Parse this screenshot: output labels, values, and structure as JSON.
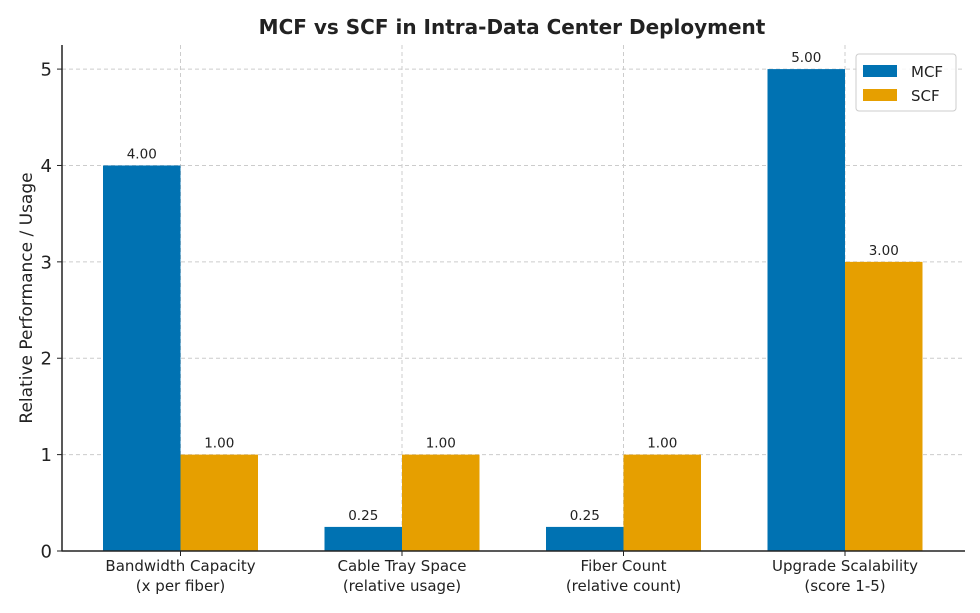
{
  "chart_data": {
    "type": "bar",
    "title": "MCF vs SCF in Intra-Data Center Deployment",
    "xlabel": "",
    "ylabel": "Relative Performance / Usage",
    "categories": [
      [
        "Bandwidth Capacity",
        "(x per fiber)"
      ],
      [
        "Cable Tray Space",
        "(relative usage)"
      ],
      [
        "Fiber Count",
        "(relative count)"
      ],
      [
        "Upgrade Scalability",
        "(score 1-5)"
      ]
    ],
    "series": [
      {
        "name": "MCF",
        "color": "#0072b2",
        "values": [
          4.0,
          0.25,
          0.25,
          5.0
        ],
        "labels": [
          "4.00",
          "0.25",
          "0.25",
          "5.00"
        ]
      },
      {
        "name": "SCF",
        "color": "#e69f00",
        "values": [
          1.0,
          1.0,
          1.0,
          3.0
        ],
        "labels": [
          "1.00",
          "1.00",
          "1.00",
          "3.00"
        ]
      }
    ],
    "ylim": [
      0,
      5.25
    ],
    "yticks": [
      0,
      1,
      2,
      3,
      4,
      5
    ],
    "grid": true,
    "legend_position": "top-right"
  }
}
